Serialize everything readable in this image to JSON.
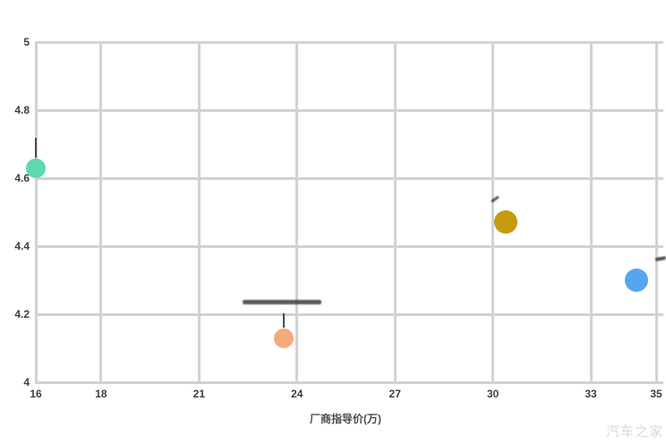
{
  "watermark": "汽车之家",
  "chart_data": {
    "type": "scatter",
    "title": "",
    "xlabel": "厂商指导价(万)",
    "ylabel": "",
    "xlim": [
      16,
      35
    ],
    "ylim": [
      4,
      5
    ],
    "grid": true,
    "grid_color": "#d2d2d2",
    "x_ticks": [
      {
        "value": 16,
        "label": "16"
      },
      {
        "value": 18,
        "label": "18"
      },
      {
        "value": 21,
        "label": "21"
      },
      {
        "value": 24,
        "label": "24"
      },
      {
        "value": 27,
        "label": "27"
      },
      {
        "value": 30,
        "label": "30"
      },
      {
        "value": 33,
        "label": "33"
      },
      {
        "value": 35,
        "label": "35"
      }
    ],
    "y_ticks": [
      {
        "value": 4,
        "label": "4"
      },
      {
        "value": 4.2,
        "label": "4.2"
      },
      {
        "value": 4.4,
        "label": "4.4"
      },
      {
        "value": 4.6,
        "label": "4.6"
      },
      {
        "value": 4.8,
        "label": "4.8"
      },
      {
        "value": 5,
        "label": "5"
      }
    ],
    "points": [
      {
        "name": "bubble-teal",
        "x": 16.0,
        "y": 4.63,
        "r": 11,
        "color": "#5ed8af",
        "marker": "pointer-line"
      },
      {
        "name": "bubble-peach",
        "x": 23.6,
        "y": 4.13,
        "r": 11,
        "color": "#f4aa7c",
        "marker": "pointer-line-smear"
      },
      {
        "name": "bubble-gold",
        "x": 30.4,
        "y": 4.47,
        "r": 13,
        "color": "#c49b0e",
        "marker": "small-mark"
      },
      {
        "name": "bubble-blue",
        "x": 34.4,
        "y": 4.3,
        "r": 13,
        "color": "#57a4ef",
        "marker": "edge-smear"
      }
    ]
  }
}
